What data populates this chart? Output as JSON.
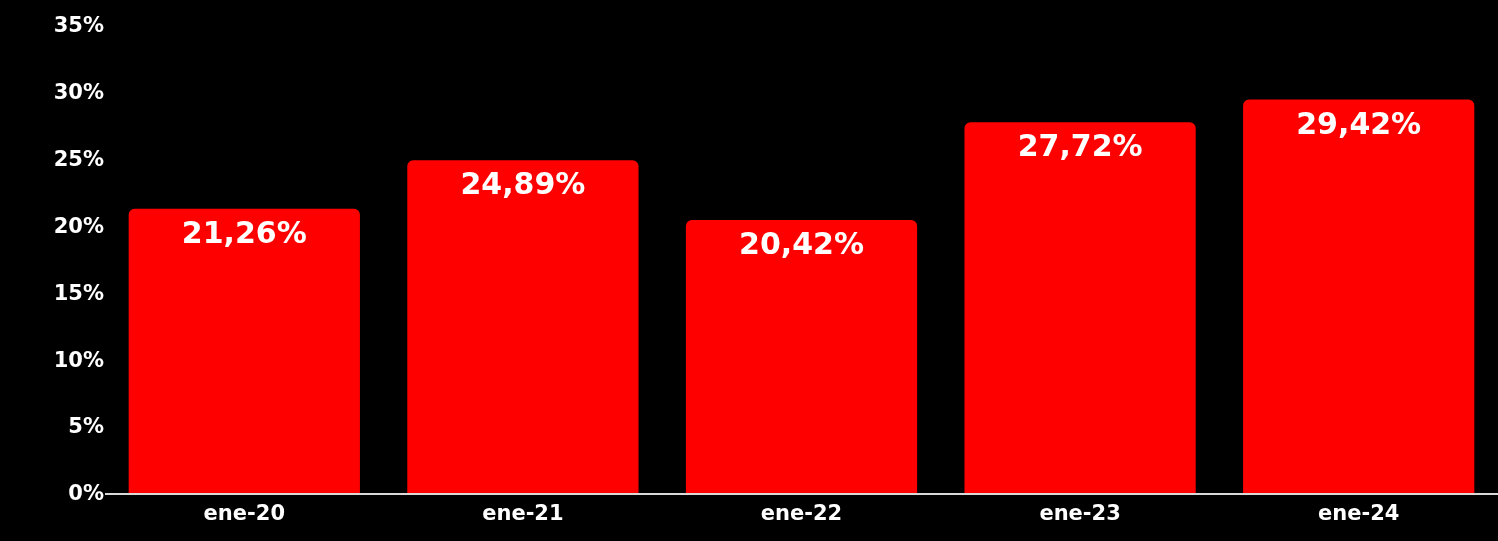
{
  "chart_data": {
    "type": "bar",
    "categories": [
      "ene-20",
      "ene-21",
      "ene-22",
      "ene-23",
      "ene-24"
    ],
    "values": [
      21.26,
      24.89,
      20.42,
      27.72,
      29.42
    ],
    "value_labels": [
      "21,26%",
      "24,89%",
      "20,42%",
      "27,72%",
      "29,42%"
    ],
    "color": "#ff0000",
    "ylim": [
      0,
      35
    ],
    "yticks": [
      {
        "value": 0,
        "label": "0%"
      },
      {
        "value": 5,
        "label": "5%"
      },
      {
        "value": 10,
        "label": "10%"
      },
      {
        "value": 15,
        "label": "15%"
      },
      {
        "value": 20,
        "label": "20%"
      },
      {
        "value": 25,
        "label": "25%"
      },
      {
        "value": 30,
        "label": "30%"
      },
      {
        "value": 35,
        "label": "35%"
      }
    ]
  }
}
